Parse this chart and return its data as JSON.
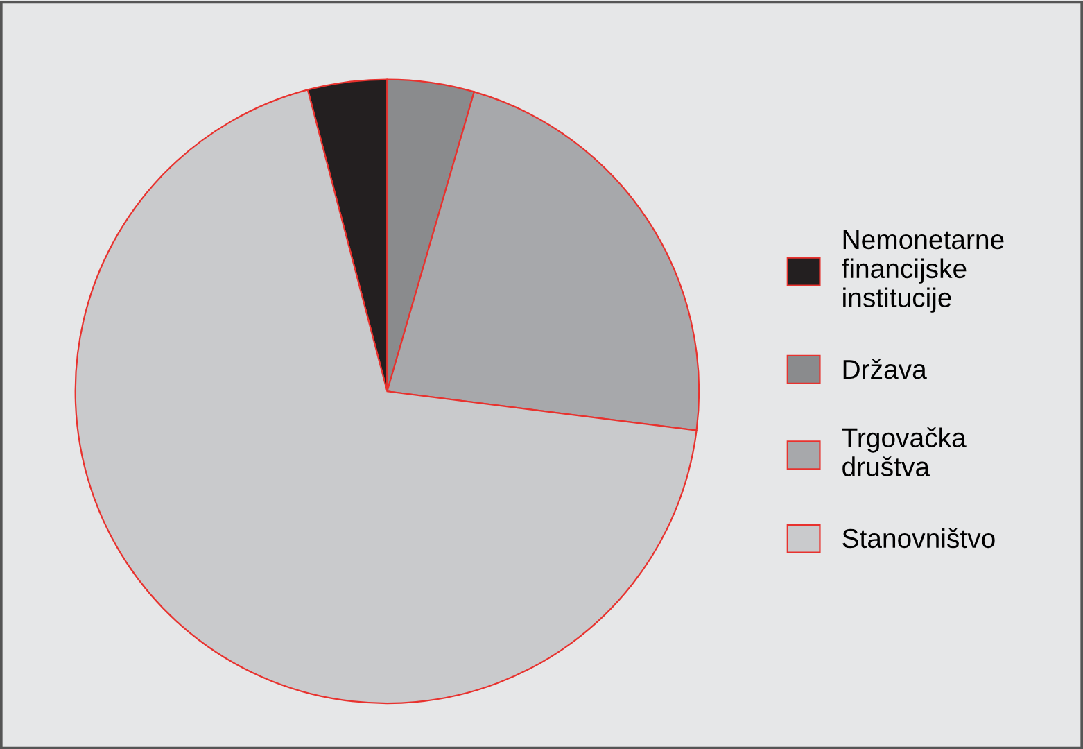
{
  "chart_data": {
    "type": "pie",
    "categories": [
      "Nemonetarne\nfinancijske\ninstitucije",
      "Država",
      "Trgovačka\ndruštva",
      "Stanovništvo"
    ],
    "values": [
      4.1,
      4.5,
      22.5,
      68.9
    ],
    "colors": [
      "#231f20",
      "#8a8b8d",
      "#a7a8ab",
      "#c9cacc"
    ],
    "legend": "right"
  }
}
